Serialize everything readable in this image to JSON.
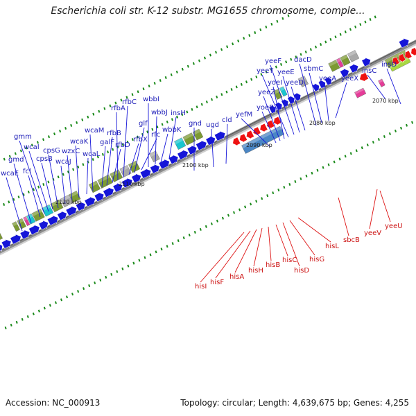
{
  "title": "Escherichia coli str. K-12 substr. MG1655 chromosome, comple...",
  "footer": {
    "accession": "Accession: NC_000913",
    "topology": "Topology: circular; Length: 4,639,675 bp; Genes: 4,255"
  },
  "colors": {
    "forward": "#1515d8",
    "reverse": "#ee1111",
    "backbone": "#8a8a8a",
    "tick": "#1a8a1a",
    "feature_olive": "#7c9a32",
    "feature_cyan": "#19c5cf",
    "feature_blue": "#4a86c4",
    "feature_magenta": "#e53c98",
    "feature_grey": "#a8a8a8",
    "feature_lime": "#a8d840"
  },
  "scale_labels": [
    "2070 kbp",
    "2080 kbp",
    "2090 kbp",
    "2100 kbp",
    "2110 kbp",
    "2120 kbp"
  ],
  "forward_genes": [
    "wcaE",
    "gmd",
    "fcl",
    "gmm",
    "wcaI",
    "cpsB",
    "cpsG",
    "wcaJ",
    "wzxC",
    "wcaK",
    "wcaL",
    "wcaM",
    "galF",
    "rfbB",
    "rfbD",
    "rfbA",
    "rfbC",
    "rfbX",
    "glf",
    "rfc",
    "wbbI",
    "wbbJ",
    "wbbK",
    "insH",
    "gnd",
    "ugd",
    "cld",
    "yefM",
    "yoeB",
    "yeeZ",
    "yoeI",
    "yeeY",
    "yeeF",
    "yeeE",
    "yeeD",
    "dacD",
    "sbmC",
    "yeeA",
    "yeeX",
    "insC",
    "insD"
  ],
  "reverse_genes": [
    "hisI",
    "hisF",
    "hisA",
    "hisH",
    "hisB",
    "hisC",
    "hisD",
    "hisG",
    "hisL",
    "sbcB",
    "yeeV",
    "yeeU"
  ]
}
